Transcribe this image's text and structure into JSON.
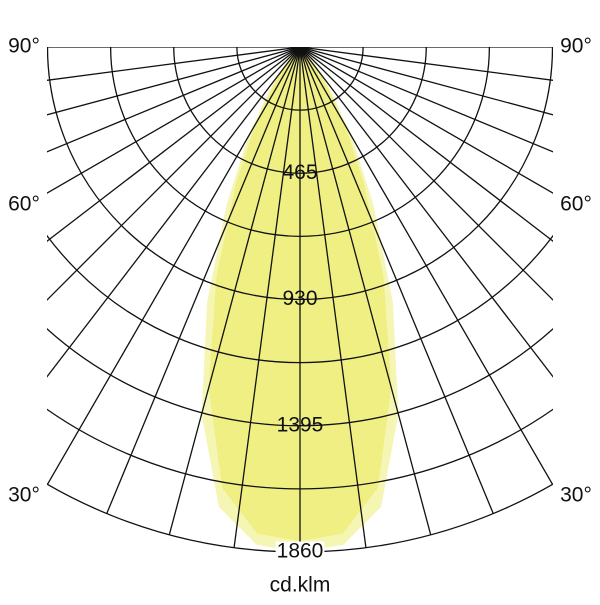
{
  "chart_data": {
    "type": "polar",
    "axis_label": "cd.klm",
    "rlim": [
      0,
      1860
    ],
    "rticks": [
      465,
      930,
      1395,
      1860
    ],
    "minor_rticks": [
      232.5,
      697.5,
      1162.5,
      1627.5
    ],
    "angle_gridlines": [
      -90,
      -82.5,
      -75,
      -67.5,
      -60,
      -52.5,
      -45,
      -37.5,
      -30,
      -22.5,
      -15,
      -7.5,
      0,
      7.5,
      15,
      22.5,
      30,
      37.5,
      45,
      52.5,
      60,
      67.5,
      75,
      82.5,
      90
    ],
    "angle_ticks": [
      {
        "value": 90,
        "label": "90°"
      },
      {
        "value": 60,
        "label": "60°"
      },
      {
        "value": 30,
        "label": "30°"
      }
    ],
    "angles": [
      -50,
      -45,
      -40,
      -35,
      -30,
      -25,
      -20,
      -15,
      -10,
      -5,
      0,
      5,
      10,
      15,
      20,
      25,
      30,
      35,
      40,
      45,
      50
    ],
    "series": [
      {
        "color": "#f6f6b4",
        "values": [
          10,
          35,
          90,
          200,
          380,
          640,
          1000,
          1400,
          1720,
          1840,
          1860,
          1840,
          1720,
          1400,
          1000,
          640,
          380,
          200,
          90,
          35,
          10
        ]
      },
      {
        "color": "#efef84",
        "values": [
          10,
          30,
          80,
          170,
          330,
          560,
          900,
          1300,
          1650,
          1800,
          1820,
          1800,
          1650,
          1300,
          900,
          560,
          330,
          170,
          80,
          30,
          10
        ]
      }
    ]
  }
}
